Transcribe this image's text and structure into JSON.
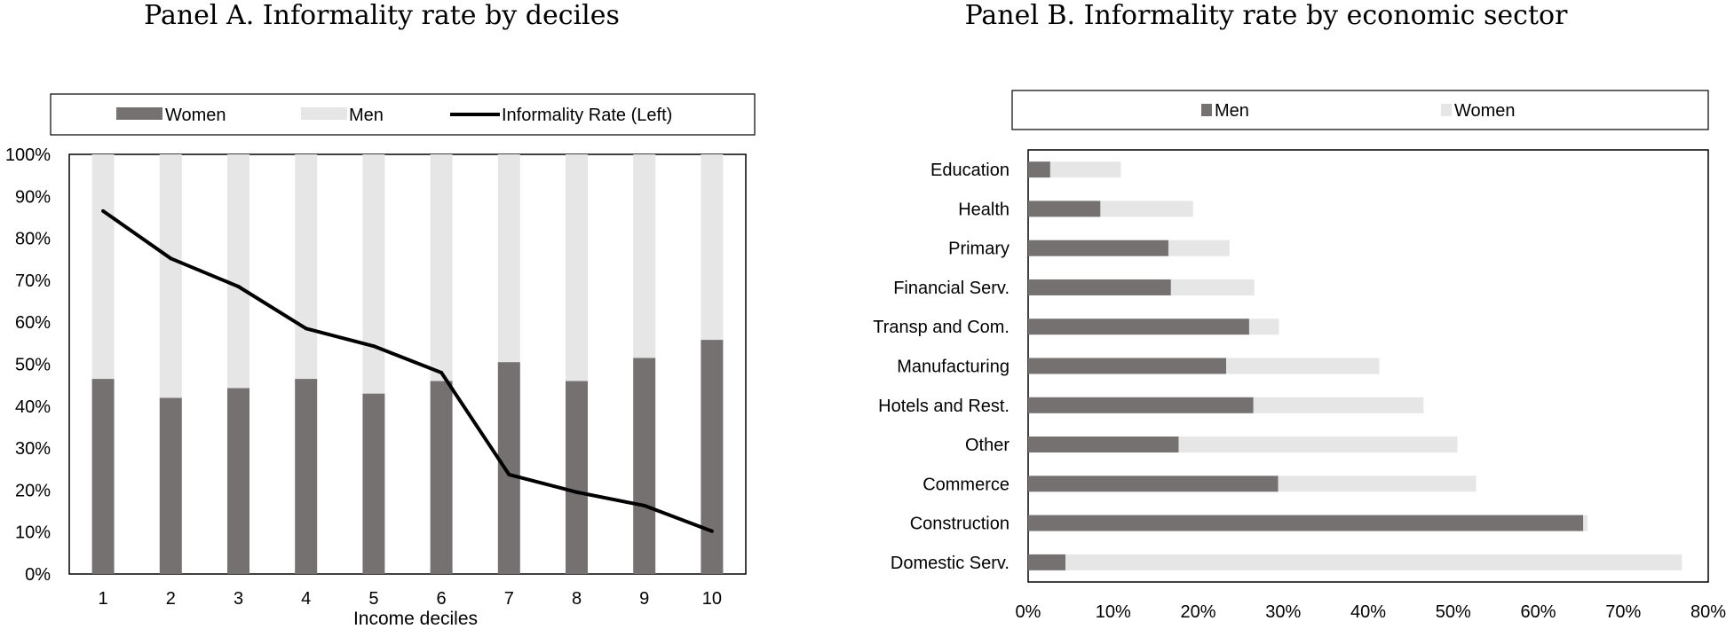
{
  "chart_data": [
    {
      "type": "bar",
      "stacked": true,
      "title": "Panel A. Informality rate by deciles",
      "xlabel": "Income deciles",
      "ylabel": "",
      "ylim": [
        0,
        1
      ],
      "y_ticks": [
        "0%",
        "10%",
        "20%",
        "30%",
        "40%",
        "50%",
        "60%",
        "70%",
        "80%",
        "90%",
        "100%"
      ],
      "categories": [
        "1",
        "2",
        "3",
        "4",
        "5",
        "6",
        "7",
        "8",
        "9",
        "10"
      ],
      "legend_position": "top",
      "grid": false,
      "series": [
        {
          "name": "Women",
          "kind": "bar",
          "color": "#767171",
          "values": [
            0.465,
            0.42,
            0.443,
            0.465,
            0.43,
            0.46,
            0.505,
            0.46,
            0.515,
            0.558
          ]
        },
        {
          "name": "Men",
          "kind": "bar",
          "color": "#e7e6e6",
          "values": [
            0.535,
            0.58,
            0.557,
            0.535,
            0.57,
            0.54,
            0.495,
            0.54,
            0.485,
            0.442
          ]
        },
        {
          "name": "Informality Rate (Left)",
          "kind": "line",
          "color": "#000000",
          "values": [
            0.865,
            0.752,
            0.685,
            0.585,
            0.543,
            0.48,
            0.237,
            0.195,
            0.163,
            0.102
          ]
        }
      ]
    },
    {
      "type": "bar",
      "orientation": "horizontal",
      "stacked": true,
      "title": "Panel B. Informality rate by economic sector",
      "xlabel": "",
      "ylabel": "",
      "xlim": [
        0,
        0.8
      ],
      "x_ticks": [
        "0%",
        "10%",
        "20%",
        "30%",
        "40%",
        "50%",
        "60%",
        "70%",
        "80%"
      ],
      "categories": [
        "Education",
        "Health",
        "Primary",
        "Financial Serv.",
        "Transp and Com.",
        "Manufacturing",
        "Hotels and Rest.",
        "Other",
        "Commerce",
        "Construction",
        "Domestic Serv."
      ],
      "legend_position": "top",
      "grid": false,
      "series": [
        {
          "name": "Men",
          "color": "#767171",
          "values": [
            0.026,
            0.085,
            0.165,
            0.168,
            0.26,
            0.233,
            0.265,
            0.177,
            0.294,
            0.653,
            0.044
          ]
        },
        {
          "name": "Women",
          "color": "#e7e6e6",
          "values": [
            0.083,
            0.109,
            0.072,
            0.098,
            0.035,
            0.18,
            0.2,
            0.328,
            0.233,
            0.005,
            0.725
          ]
        }
      ]
    }
  ]
}
